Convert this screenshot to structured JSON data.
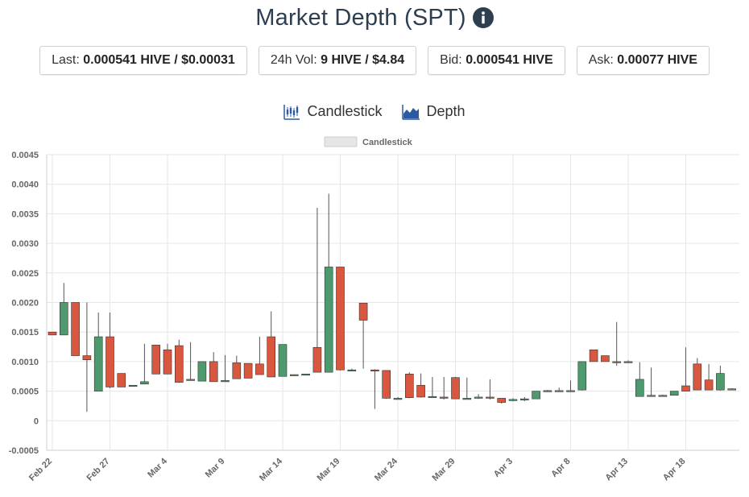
{
  "header": {
    "title": "Market Depth (SPT)",
    "info_icon": "info-circle-icon"
  },
  "stats": [
    {
      "label": "Last: ",
      "value": "0.000541 HIVE / $0.00031"
    },
    {
      "label": "24h Vol: ",
      "value": "9 HIVE / $4.84"
    },
    {
      "label": "Bid: ",
      "value": "0.000541 HIVE"
    },
    {
      "label": "Ask: ",
      "value": "0.00077 HIVE"
    }
  ],
  "modes": [
    {
      "label": "Candlestick",
      "icon": "candlestick-chart-icon"
    },
    {
      "label": "Depth",
      "icon": "area-chart-icon"
    }
  ],
  "colors": {
    "up": "#4e9a6e",
    "down": "#d9573e",
    "title": "#2c3e50",
    "grid": "#e6e6e6",
    "accent": "#2c5aa0"
  },
  "chart_data": {
    "type": "candlestick",
    "legend": "Candlestick",
    "legend_position": "top-center",
    "grid": true,
    "ylim": [
      -0.0005,
      0.0045
    ],
    "yticks": [
      "-0.0005",
      "0",
      "0.0005",
      "0.0010",
      "0.0015",
      "0.0020",
      "0.0025",
      "0.0030",
      "0.0035",
      "0.0040",
      "0.0045"
    ],
    "ytick_values": [
      -0.0005,
      0,
      0.0005,
      0.001,
      0.0015,
      0.002,
      0.0025,
      0.003,
      0.0035,
      0.004,
      0.0045
    ],
    "xticks": [
      "Feb 22",
      "Feb 27",
      "Mar 4",
      "Mar 9",
      "Mar 14",
      "Mar 19",
      "Mar 24",
      "Mar 29",
      "Apr 3",
      "Apr 8",
      "Apr 13",
      "Apr 18"
    ],
    "xtick_day_index": [
      0,
      5,
      10,
      15,
      20,
      25,
      30,
      35,
      40,
      45,
      50,
      55
    ],
    "candles": [
      {
        "d": 0,
        "o": 0.0015,
        "h": 0.0015,
        "l": 0.00145,
        "c": 0.00145
      },
      {
        "d": 1,
        "o": 0.00145,
        "h": 0.00233,
        "l": 0.00145,
        "c": 0.002
      },
      {
        "d": 2,
        "o": 0.002,
        "h": 0.002,
        "l": 0.0011,
        "c": 0.0011
      },
      {
        "d": 3,
        "o": 0.0011,
        "h": 0.002,
        "l": 0.00015,
        "c": 0.00103
      },
      {
        "d": 4,
        "o": 0.0005,
        "h": 0.00183,
        "l": 0.0005,
        "c": 0.00142
      },
      {
        "d": 5,
        "o": 0.00142,
        "h": 0.00183,
        "l": 0.00055,
        "c": 0.00057
      },
      {
        "d": 6,
        "o": 0.0008,
        "h": 0.0008,
        "l": 0.00057,
        "c": 0.00057
      },
      {
        "d": 7,
        "o": 0.00058,
        "h": 0.0006,
        "l": 0.00058,
        "c": 0.0006
      },
      {
        "d": 8,
        "o": 0.00062,
        "h": 0.0013,
        "l": 0.00062,
        "c": 0.00066
      },
      {
        "d": 9,
        "o": 0.00128,
        "h": 0.00128,
        "l": 0.00079,
        "c": 0.00079
      },
      {
        "d": 10,
        "o": 0.0012,
        "h": 0.0013,
        "l": 0.00079,
        "c": 0.00079
      },
      {
        "d": 11,
        "o": 0.00127,
        "h": 0.00137,
        "l": 0.00064,
        "c": 0.00065
      },
      {
        "d": 12,
        "o": 0.0007,
        "h": 0.00133,
        "l": 0.00068,
        "c": 0.00068
      },
      {
        "d": 13,
        "o": 0.00067,
        "h": 0.001,
        "l": 0.00067,
        "c": 0.001
      },
      {
        "d": 14,
        "o": 0.001,
        "h": 0.00116,
        "l": 0.00066,
        "c": 0.00066
      },
      {
        "d": 15,
        "o": 0.00066,
        "h": 0.00111,
        "l": 0.00066,
        "c": 0.00068
      },
      {
        "d": 16,
        "o": 0.00098,
        "h": 0.0011,
        "l": 0.00071,
        "c": 0.00071
      },
      {
        "d": 17,
        "o": 0.00097,
        "h": 0.00097,
        "l": 0.00072,
        "c": 0.00072
      },
      {
        "d": 18,
        "o": 0.00096,
        "h": 0.00142,
        "l": 0.00078,
        "c": 0.00078
      },
      {
        "d": 19,
        "o": 0.00142,
        "h": 0.00185,
        "l": 0.00074,
        "c": 0.00074
      },
      {
        "d": 20,
        "o": 0.00075,
        "h": 0.00129,
        "l": 0.00075,
        "c": 0.00129
      },
      {
        "d": 21,
        "o": 0.00076,
        "h": 0.00078,
        "l": 0.00076,
        "c": 0.00078
      },
      {
        "d": 22,
        "o": 0.00077,
        "h": 0.00079,
        "l": 0.00077,
        "c": 0.00079
      },
      {
        "d": 23,
        "o": 0.00124,
        "h": 0.0036,
        "l": 0.00082,
        "c": 0.00082
      },
      {
        "d": 24,
        "o": 0.00082,
        "h": 0.00384,
        "l": 0.00082,
        "c": 0.0026
      },
      {
        "d": 25,
        "o": 0.0026,
        "h": 0.0026,
        "l": 0.00085,
        "c": 0.00086
      },
      {
        "d": 26,
        "o": 0.00086,
        "h": 0.00088,
        "l": 0.00086,
        "c": 0.00086
      },
      {
        "d": 27,
        "o": 0.00199,
        "h": 0.00199,
        "l": 0.00088,
        "c": 0.0017
      },
      {
        "d": 28,
        "o": 0.00086,
        "h": 0.00087,
        "l": 0.0002,
        "c": 0.00085
      },
      {
        "d": 29,
        "o": 0.00085,
        "h": 0.00085,
        "l": 0.00037,
        "c": 0.00038
      },
      {
        "d": 30,
        "o": 0.00038,
        "h": 0.0004,
        "l": 0.00037,
        "c": 0.00038
      },
      {
        "d": 31,
        "o": 0.00079,
        "h": 0.00082,
        "l": 0.00038,
        "c": 0.00039
      },
      {
        "d": 32,
        "o": 0.0006,
        "h": 0.0008,
        "l": 0.00039,
        "c": 0.0004
      },
      {
        "d": 33,
        "o": 0.00041,
        "h": 0.00074,
        "l": 0.0004,
        "c": 0.00041
      },
      {
        "d": 34,
        "o": 0.0004,
        "h": 0.00074,
        "l": 0.00036,
        "c": 0.00038
      },
      {
        "d": 35,
        "o": 0.00073,
        "h": 0.00074,
        "l": 0.00037,
        "c": 0.00037
      },
      {
        "d": 36,
        "o": 0.00038,
        "h": 0.00073,
        "l": 0.00037,
        "c": 0.00038
      },
      {
        "d": 37,
        "o": 0.00038,
        "h": 0.00045,
        "l": 0.00037,
        "c": 0.0004
      },
      {
        "d": 38,
        "o": 0.0004,
        "h": 0.0007,
        "l": 0.00036,
        "c": 0.00038
      },
      {
        "d": 39,
        "o": 0.00038,
        "h": 0.00038,
        "l": 0.00029,
        "c": 0.00031
      },
      {
        "d": 40,
        "o": 0.00036,
        "h": 0.00038,
        "l": 0.00033,
        "c": 0.00036
      },
      {
        "d": 41,
        "o": 0.00036,
        "h": 0.0004,
        "l": 0.00033,
        "c": 0.00037
      },
      {
        "d": 42,
        "o": 0.00037,
        "h": 0.0005,
        "l": 0.00037,
        "c": 0.0005
      },
      {
        "d": 43,
        "o": 0.0005,
        "h": 0.00052,
        "l": 0.00049,
        "c": 0.00051
      },
      {
        "d": 44,
        "o": 0.00051,
        "h": 0.00056,
        "l": 0.0005,
        "c": 0.00051
      },
      {
        "d": 45,
        "o": 0.00051,
        "h": 0.00068,
        "l": 0.00049,
        "c": 0.00051
      },
      {
        "d": 46,
        "o": 0.00052,
        "h": 0.001,
        "l": 0.00051,
        "c": 0.001
      },
      {
        "d": 47,
        "o": 0.0012,
        "h": 0.0012,
        "l": 0.001,
        "c": 0.001
      },
      {
        "d": 48,
        "o": 0.0011,
        "h": 0.0011,
        "l": 0.001,
        "c": 0.001
      },
      {
        "d": 49,
        "o": 0.001,
        "h": 0.00167,
        "l": 0.00093,
        "c": 0.00098
      },
      {
        "d": 50,
        "o": 0.001,
        "h": 0.00102,
        "l": 0.00098,
        "c": 0.001
      },
      {
        "d": 51,
        "o": 0.00041,
        "h": 0.00099,
        "l": 0.00041,
        "c": 0.0007
      },
      {
        "d": 52,
        "o": 0.00043,
        "h": 0.0009,
        "l": 0.00041,
        "c": 0.00043
      },
      {
        "d": 53,
        "o": 0.00043,
        "h": 0.00044,
        "l": 0.00042,
        "c": 0.00043
      },
      {
        "d": 54,
        "o": 0.00043,
        "h": 0.0005,
        "l": 0.00043,
        "c": 0.0005
      },
      {
        "d": 55,
        "o": 0.00059,
        "h": 0.00124,
        "l": 0.0005,
        "c": 0.0005
      },
      {
        "d": 56,
        "o": 0.00096,
        "h": 0.00106,
        "l": 0.00052,
        "c": 0.00052
      },
      {
        "d": 57,
        "o": 0.00069,
        "h": 0.00096,
        "l": 0.00052,
        "c": 0.00052
      },
      {
        "d": 58,
        "o": 0.00052,
        "h": 0.00093,
        "l": 0.00051,
        "c": 0.0008
      },
      {
        "d": 59,
        "o": 0.00054,
        "h": 0.00055,
        "l": 0.00053,
        "c": 0.00053
      }
    ]
  }
}
